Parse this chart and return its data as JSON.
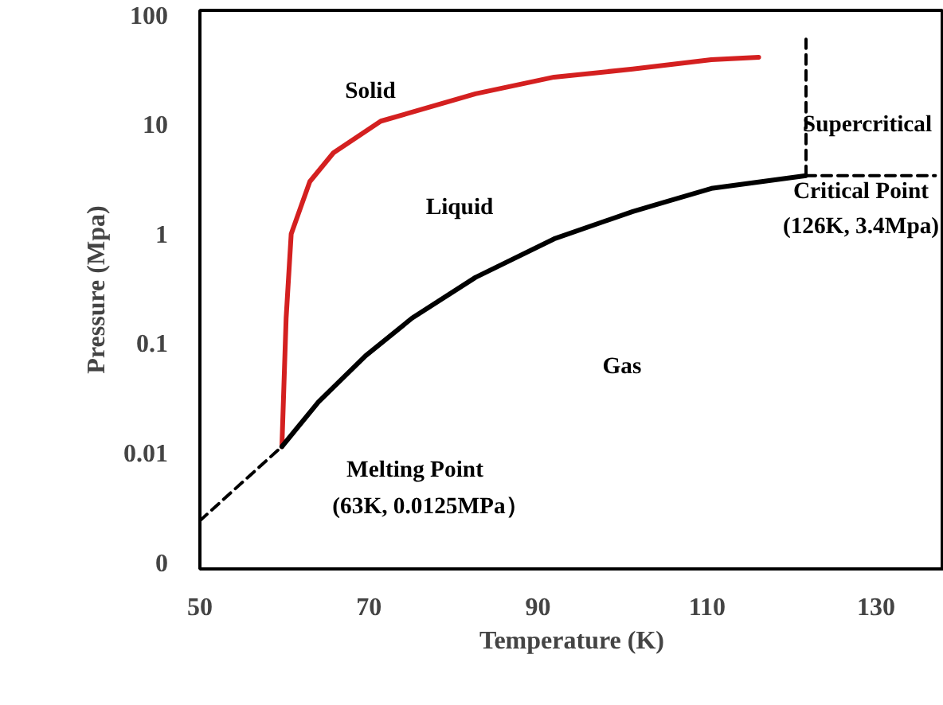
{
  "chart_data": {
    "type": "line",
    "xlabel": "Temperature (K)",
    "ylabel": "Pressure (Mpa)",
    "log": "y",
    "xlim": [
      50,
      138
    ],
    "ylim": [
      0.00087,
      110
    ],
    "xticks": [
      50,
      70,
      90,
      110,
      130
    ],
    "yticks": [
      {
        "value": 0.001,
        "label": "0"
      },
      0.01,
      0.1,
      1,
      10,
      100
    ],
    "grid": false,
    "line_style": "solid",
    "marker": "none",
    "series": [
      {
        "color": "#d42020",
        "x": [
          59.7,
          60.2,
          60.8,
          63,
          65.8,
          71.4,
          82.6,
          91.9,
          101.2,
          110.5,
          116.1
        ],
        "values": [
          0.0114,
          0.17,
          1,
          3,
          5.5,
          10.7,
          19,
          27,
          32,
          39,
          41
        ]
      },
      {
        "color": "#000000",
        "x": [
          59.7,
          64,
          69.6,
          75.1,
          82.6,
          91.9,
          101.2,
          110.5,
          121.7
        ],
        "values": [
          0.0114,
          0.029,
          0.077,
          0.17,
          0.4,
          0.9,
          1.6,
          2.6,
          3.4
        ]
      },
      {
        "color": "#000000",
        "line_style": "dashed",
        "x": [
          50,
          59.7
        ],
        "values": [
          0.0024,
          0.0114
        ]
      },
      {
        "color": "#000000",
        "line_style": "dashed",
        "x": [
          121.7,
          121.7
        ],
        "values": [
          3.4,
          60
        ]
      },
      {
        "color": "#000000",
        "line_style": "dashed",
        "x": [
          121.7,
          137
        ],
        "values": [
          3.4,
          3.4
        ]
      }
    ],
    "annotations": [
      "Solid",
      "Liquid",
      "Gas",
      "Supercritical",
      "Critical Point",
      "(126K, 3.4Mpa)",
      "Melting Point",
      "(63K, 0.0125MPa）"
    ]
  }
}
